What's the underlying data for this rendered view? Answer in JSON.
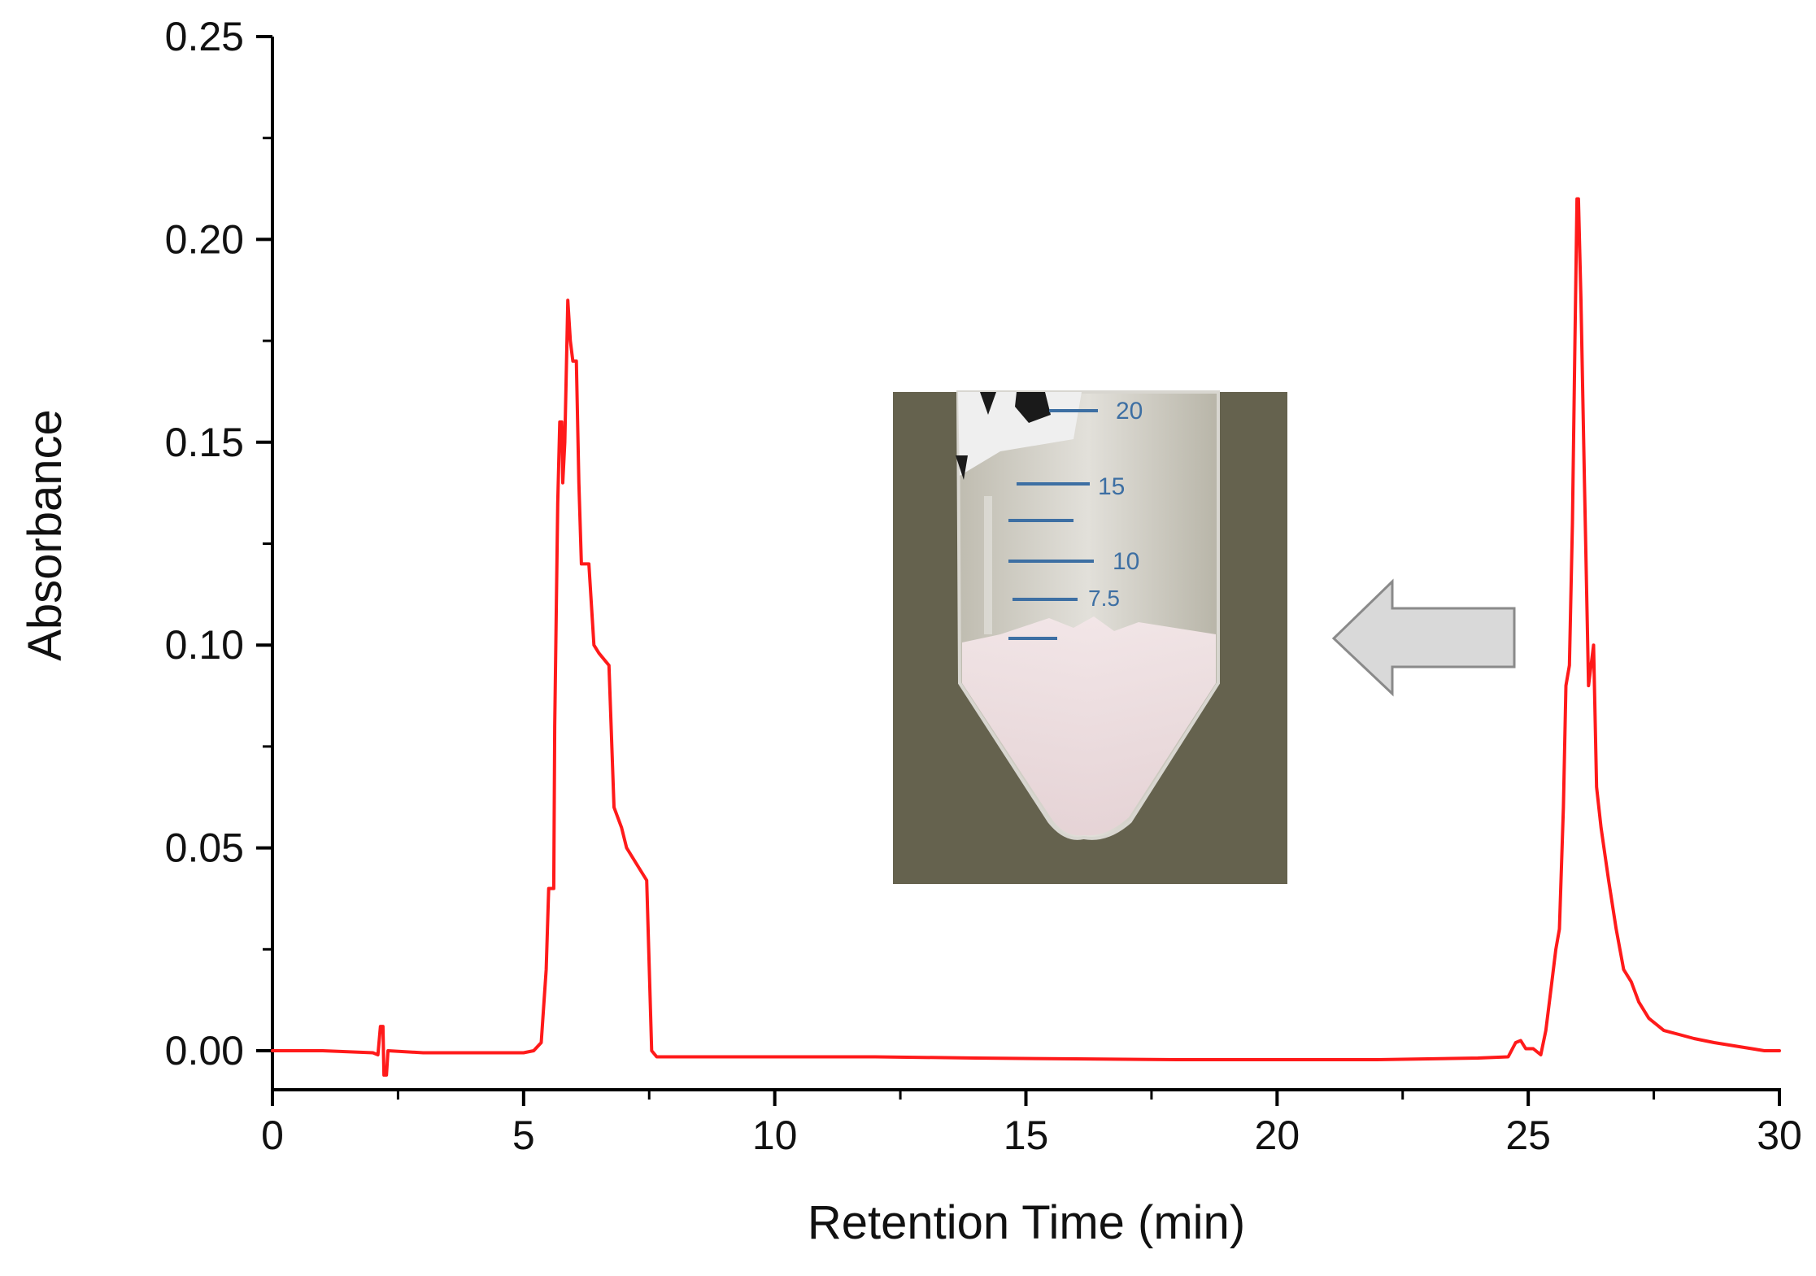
{
  "colors": {
    "trace": "#ff1a1a",
    "axis": "#000000",
    "background": "#ffffff",
    "arrow_fill": "#d9d9d9",
    "arrow_stroke": "#8a8a8a",
    "photo_background": "#676450"
  },
  "inset": {
    "icon": "centrifuge-tube-photo",
    "tube_marks": [
      "20",
      "15",
      "10",
      "7.5"
    ]
  },
  "arrow": {
    "icon": "left-arrow-icon",
    "direction": "left"
  },
  "chart_data": {
    "type": "line",
    "title": "",
    "xlabel": "Retention Time (min)",
    "ylabel": "Absorbance",
    "xlim": [
      0,
      30
    ],
    "ylim": [
      -0.01,
      0.25
    ],
    "x_ticks": [
      "0",
      "5",
      "10",
      "15",
      "20",
      "25",
      "30"
    ],
    "y_ticks": [
      "0.00",
      "0.05",
      "0.10",
      "0.15",
      "0.20",
      "0.25"
    ],
    "grid": false,
    "legend": "none",
    "series": [
      {
        "color": "#ff1a1a",
        "points": [
          [
            0,
            0.0
          ],
          [
            1.0,
            0.0
          ],
          [
            2.0,
            -0.0005
          ],
          [
            2.1,
            -0.001
          ],
          [
            2.15,
            0.006
          ],
          [
            2.2,
            0.006
          ],
          [
            2.22,
            -0.006
          ],
          [
            2.27,
            -0.006
          ],
          [
            2.3,
            0.0
          ],
          [
            3.0,
            -0.0005
          ],
          [
            4.0,
            -0.0005
          ],
          [
            5.0,
            -0.0005
          ],
          [
            5.2,
            0.0
          ],
          [
            5.35,
            0.002
          ],
          [
            5.45,
            0.02
          ],
          [
            5.5,
            0.04
          ],
          [
            5.55,
            0.04
          ],
          [
            5.6,
            0.04
          ],
          [
            5.62,
            0.08
          ],
          [
            5.68,
            0.135
          ],
          [
            5.72,
            0.155
          ],
          [
            5.76,
            0.155
          ],
          [
            5.78,
            0.14
          ],
          [
            5.82,
            0.15
          ],
          [
            5.88,
            0.185
          ],
          [
            5.93,
            0.175
          ],
          [
            5.98,
            0.17
          ],
          [
            6.05,
            0.17
          ],
          [
            6.1,
            0.14
          ],
          [
            6.15,
            0.12
          ],
          [
            6.3,
            0.12
          ],
          [
            6.4,
            0.1
          ],
          [
            6.5,
            0.098
          ],
          [
            6.7,
            0.095
          ],
          [
            6.8,
            0.06
          ],
          [
            6.95,
            0.055
          ],
          [
            7.05,
            0.05
          ],
          [
            7.3,
            0.045
          ],
          [
            7.45,
            0.042
          ],
          [
            7.55,
            0.0
          ],
          [
            7.65,
            -0.0015
          ],
          [
            7.8,
            -0.0015
          ],
          [
            8,
            -0.0015
          ],
          [
            10,
            -0.0015
          ],
          [
            12,
            -0.0015
          ],
          [
            14,
            -0.0018
          ],
          [
            16,
            -0.002
          ],
          [
            18,
            -0.0022
          ],
          [
            20,
            -0.0022
          ],
          [
            22,
            -0.0022
          ],
          [
            24,
            -0.0018
          ],
          [
            24.6,
            -0.0015
          ],
          [
            24.75,
            0.002
          ],
          [
            24.85,
            0.0025
          ],
          [
            24.95,
            0.0005
          ],
          [
            25.1,
            0.0005
          ],
          [
            25.25,
            -0.001
          ],
          [
            25.35,
            0.005
          ],
          [
            25.45,
            0.015
          ],
          [
            25.55,
            0.025
          ],
          [
            25.62,
            0.03
          ],
          [
            25.7,
            0.06
          ],
          [
            25.75,
            0.09
          ],
          [
            25.82,
            0.095
          ],
          [
            25.88,
            0.13
          ],
          [
            25.93,
            0.175
          ],
          [
            25.97,
            0.21
          ],
          [
            26.0,
            0.21
          ],
          [
            26.05,
            0.185
          ],
          [
            26.12,
            0.14
          ],
          [
            26.2,
            0.09
          ],
          [
            26.3,
            0.1
          ],
          [
            26.36,
            0.065
          ],
          [
            26.45,
            0.055
          ],
          [
            26.6,
            0.042
          ],
          [
            26.75,
            0.03
          ],
          [
            26.9,
            0.02
          ],
          [
            27.05,
            0.017
          ],
          [
            27.2,
            0.012
          ],
          [
            27.4,
            0.008
          ],
          [
            27.7,
            0.005
          ],
          [
            28.0,
            0.004
          ],
          [
            28.3,
            0.003
          ],
          [
            28.7,
            0.002
          ],
          [
            29.2,
            0.001
          ],
          [
            29.7,
            0.0
          ],
          [
            30.0,
            0.0
          ]
        ]
      }
    ]
  }
}
